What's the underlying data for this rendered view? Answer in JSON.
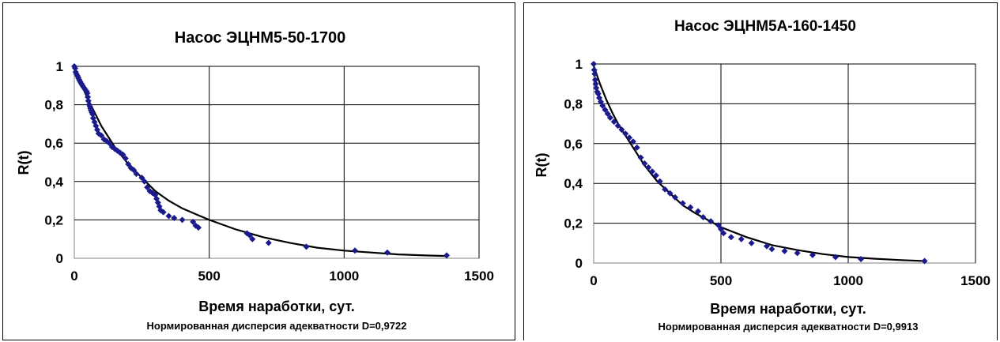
{
  "chart_data": [
    {
      "type": "scatter",
      "title": "Насос ЭЦНМ5-50-1700",
      "xlabel": "Время наработки, сут.",
      "ylabel": "R(t)",
      "footnote": "Нормированная дисперсия адекватности D=0,9722",
      "xlim": [
        0,
        1500
      ],
      "ylim": [
        0,
        1
      ],
      "xticks": [
        "0",
        "500",
        "1000",
        "1500"
      ],
      "yticks": [
        "0",
        "0,2",
        "0,4",
        "0,6",
        "0,8",
        "1"
      ],
      "grid": true,
      "legend": "none",
      "series": [
        {
          "kind": "points",
          "color": "#1a1a8c",
          "x": [
            0,
            3,
            5,
            8,
            12,
            15,
            18,
            22,
            26,
            30,
            35,
            40,
            45,
            48,
            50,
            52,
            55,
            58,
            60,
            62,
            65,
            68,
            70,
            75,
            80,
            85,
            90,
            100,
            110,
            120,
            130,
            140,
            150,
            160,
            170,
            180,
            190,
            200,
            210,
            220,
            230,
            250,
            260,
            270,
            280,
            290,
            300,
            305,
            310,
            315,
            320,
            330,
            350,
            370,
            400,
            440,
            450,
            460,
            640,
            650,
            660,
            720,
            860,
            1040,
            1160,
            1380
          ],
          "y": [
            1.0,
            0.99,
            0.97,
            0.96,
            0.95,
            0.94,
            0.93,
            0.92,
            0.91,
            0.9,
            0.89,
            0.88,
            0.87,
            0.86,
            0.84,
            0.82,
            0.8,
            0.79,
            0.78,
            0.77,
            0.76,
            0.75,
            0.73,
            0.71,
            0.69,
            0.67,
            0.65,
            0.64,
            0.62,
            0.61,
            0.6,
            0.58,
            0.57,
            0.56,
            0.55,
            0.54,
            0.52,
            0.49,
            0.47,
            0.46,
            0.44,
            0.42,
            0.4,
            0.37,
            0.35,
            0.34,
            0.33,
            0.31,
            0.29,
            0.27,
            0.25,
            0.24,
            0.22,
            0.21,
            0.2,
            0.19,
            0.17,
            0.16,
            0.13,
            0.12,
            0.1,
            0.08,
            0.06,
            0.04,
            0.03,
            0.015
          ]
        },
        {
          "kind": "line",
          "color": "#000000",
          "x": [
            0,
            25,
            50,
            75,
            100,
            150,
            200,
            250,
            300,
            350,
            400,
            500,
            600,
            700,
            800,
            900,
            1000,
            1100,
            1200,
            1300,
            1380
          ],
          "y": [
            0.98,
            0.91,
            0.83,
            0.76,
            0.69,
            0.58,
            0.49,
            0.42,
            0.35,
            0.3,
            0.26,
            0.2,
            0.15,
            0.11,
            0.08,
            0.055,
            0.04,
            0.03,
            0.02,
            0.015,
            0.012
          ]
        }
      ]
    },
    {
      "type": "scatter",
      "title": "Насос ЭЦНМ5А-160-1450",
      "xlabel": "Время наработки, сут.",
      "ylabel": "R(t)",
      "footnote": "Нормированная дисперсия адекватности D=0,9913",
      "xlim": [
        0,
        1500
      ],
      "ylim": [
        0,
        1
      ],
      "xticks": [
        "0",
        "500",
        "1000",
        "1500"
      ],
      "yticks": [
        "0",
        "0,2",
        "0,4",
        "0,6",
        "0,8",
        "1"
      ],
      "grid": true,
      "legend": "none",
      "series": [
        {
          "kind": "points",
          "color": "#1a1a8c",
          "x": [
            0,
            2,
            4,
            6,
            8,
            10,
            14,
            18,
            22,
            28,
            35,
            45,
            55,
            65,
            80,
            95,
            110,
            125,
            140,
            155,
            170,
            185,
            200,
            215,
            230,
            245,
            260,
            280,
            300,
            320,
            350,
            380,
            410,
            430,
            460,
            490,
            500,
            510,
            540,
            580,
            620,
            680,
            700,
            750,
            800,
            860,
            950,
            1050,
            1300
          ],
          "y": [
            1.0,
            0.97,
            0.95,
            0.92,
            0.9,
            0.88,
            0.86,
            0.85,
            0.83,
            0.81,
            0.79,
            0.77,
            0.75,
            0.73,
            0.71,
            0.69,
            0.67,
            0.65,
            0.63,
            0.61,
            0.58,
            0.53,
            0.5,
            0.48,
            0.46,
            0.44,
            0.41,
            0.37,
            0.35,
            0.33,
            0.3,
            0.28,
            0.26,
            0.23,
            0.21,
            0.19,
            0.17,
            0.15,
            0.13,
            0.12,
            0.1,
            0.085,
            0.07,
            0.06,
            0.05,
            0.04,
            0.03,
            0.02,
            0.01
          ]
        },
        {
          "kind": "line",
          "color": "#000000",
          "x": [
            0,
            25,
            50,
            75,
            100,
            150,
            200,
            250,
            300,
            350,
            400,
            500,
            600,
            700,
            800,
            900,
            1000,
            1100,
            1200,
            1300
          ],
          "y": [
            0.99,
            0.9,
            0.82,
            0.75,
            0.69,
            0.59,
            0.49,
            0.41,
            0.35,
            0.29,
            0.25,
            0.18,
            0.13,
            0.09,
            0.065,
            0.045,
            0.03,
            0.022,
            0.015,
            0.01
          ]
        }
      ]
    }
  ]
}
